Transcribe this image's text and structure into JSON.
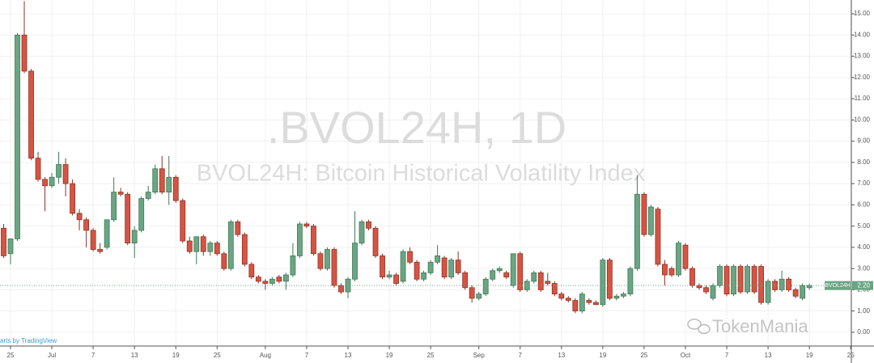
{
  "chart_data": {
    "type": "candlestick",
    "title": ".BVOL24H, 1D",
    "subtitle": "BVOL24H: Bitcoin Historical Volatility Index",
    "categories": [
      null,
      "25",
      null,
      null,
      null,
      null,
      null,
      "Jul",
      null,
      null,
      null,
      null,
      null,
      "7",
      null,
      null,
      null,
      null,
      null,
      "13",
      null,
      null,
      null,
      null,
      null,
      "19",
      null,
      null,
      null,
      null,
      null,
      "25",
      null,
      null,
      null,
      null,
      null,
      null,
      "Aug",
      null,
      null,
      null,
      null,
      null,
      "7",
      null,
      null,
      null,
      null,
      null,
      "13",
      null,
      null,
      null,
      null,
      null,
      "19",
      null,
      null,
      null,
      null,
      null,
      "25",
      null,
      null,
      null,
      null,
      null,
      null,
      "Sep",
      null,
      null,
      null,
      null,
      null,
      "7",
      null,
      null,
      null,
      null,
      null,
      "13",
      null,
      null,
      null,
      null,
      null,
      "19",
      null,
      null,
      null,
      null,
      null,
      "25",
      null,
      null,
      null,
      null,
      null,
      "Oct",
      null,
      null,
      null,
      null,
      null,
      "7",
      null,
      null,
      null,
      null,
      null,
      "13",
      null,
      null,
      null,
      null,
      null,
      "19",
      null,
      null,
      null,
      null,
      null,
      "25"
    ],
    "ohlc_order": [
      "open",
      "high",
      "low",
      "close"
    ],
    "ohlc": [
      [
        4.9,
        5.1,
        3.5,
        3.6
      ],
      [
        3.7,
        4.4,
        3.2,
        4.4
      ],
      [
        4.4,
        14.1,
        4.3,
        14.0
      ],
      [
        14.0,
        15.6,
        12.2,
        12.3
      ],
      [
        12.3,
        12.4,
        8.1,
        8.2
      ],
      [
        8.2,
        8.5,
        7.1,
        7.2
      ],
      [
        7.2,
        7.3,
        5.7,
        6.9
      ],
      [
        6.9,
        7.5,
        6.8,
        7.3
      ],
      [
        7.3,
        8.5,
        7.0,
        7.9
      ],
      [
        7.9,
        8.2,
        6.4,
        7.0
      ],
      [
        7.0,
        7.2,
        5.5,
        5.6
      ],
      [
        5.6,
        5.8,
        4.8,
        5.3
      ],
      [
        5.3,
        5.4,
        4.0,
        4.8
      ],
      [
        4.8,
        4.9,
        3.8,
        3.9
      ],
      [
        3.9,
        4.2,
        3.7,
        3.8
      ],
      [
        4.0,
        5.3,
        3.9,
        5.3
      ],
      [
        5.3,
        7.3,
        5.2,
        6.6
      ],
      [
        6.6,
        6.8,
        6.4,
        6.5
      ],
      [
        6.5,
        6.6,
        4.1,
        4.2
      ],
      [
        4.2,
        5.0,
        3.5,
        4.8
      ],
      [
        4.8,
        6.4,
        4.7,
        6.3
      ],
      [
        6.3,
        6.9,
        6.2,
        6.6
      ],
      [
        6.6,
        7.9,
        6.5,
        7.7
      ],
      [
        7.7,
        8.3,
        6.5,
        6.6
      ],
      [
        6.6,
        8.3,
        6.0,
        7.3
      ],
      [
        7.3,
        7.4,
        6.1,
        6.2
      ],
      [
        6.2,
        6.3,
        4.2,
        4.3
      ],
      [
        4.3,
        4.5,
        3.7,
        3.8
      ],
      [
        3.8,
        4.5,
        3.2,
        4.5
      ],
      [
        4.5,
        4.6,
        3.6,
        3.8
      ],
      [
        3.8,
        4.3,
        3.6,
        4.2
      ],
      [
        4.2,
        4.3,
        3.6,
        3.7
      ],
      [
        3.7,
        3.8,
        2.9,
        3.0
      ],
      [
        3.0,
        5.3,
        2.9,
        5.2
      ],
      [
        5.2,
        5.3,
        4.5,
        4.6
      ],
      [
        4.6,
        4.7,
        3.1,
        3.2
      ],
      [
        3.2,
        3.3,
        2.5,
        2.6
      ],
      [
        2.6,
        2.7,
        2.3,
        2.4
      ],
      [
        2.4,
        2.5,
        2.0,
        2.3
      ],
      [
        2.3,
        2.6,
        2.2,
        2.5
      ],
      [
        2.6,
        2.7,
        2.3,
        2.4
      ],
      [
        2.4,
        2.8,
        2.0,
        2.7
      ],
      [
        2.7,
        4.2,
        2.6,
        3.6
      ],
      [
        3.6,
        5.2,
        3.5,
        5.1
      ],
      [
        5.1,
        5.2,
        4.9,
        5.0
      ],
      [
        5.0,
        5.1,
        3.6,
        3.7
      ],
      [
        3.7,
        3.8,
        2.9,
        3.0
      ],
      [
        3.0,
        4.0,
        2.9,
        3.9
      ],
      [
        3.9,
        4.0,
        2.1,
        2.2
      ],
      [
        2.2,
        2.3,
        1.8,
        1.9
      ],
      [
        1.9,
        2.6,
        1.6,
        2.5
      ],
      [
        2.5,
        5.7,
        2.4,
        4.2
      ],
      [
        4.2,
        5.3,
        4.1,
        5.2
      ],
      [
        5.2,
        5.3,
        4.8,
        4.9
      ],
      [
        4.9,
        5.0,
        3.5,
        3.6
      ],
      [
        3.6,
        3.7,
        2.5,
        2.6
      ],
      [
        2.6,
        2.9,
        2.5,
        2.7
      ],
      [
        2.7,
        2.8,
        2.2,
        2.3
      ],
      [
        2.4,
        3.9,
        2.3,
        3.8
      ],
      [
        3.8,
        4.0,
        3.2,
        3.3
      ],
      [
        3.3,
        3.4,
        2.4,
        2.5
      ],
      [
        2.5,
        2.9,
        2.4,
        2.8
      ],
      [
        2.8,
        3.4,
        2.7,
        3.3
      ],
      [
        3.3,
        4.1,
        3.2,
        3.6
      ],
      [
        3.5,
        3.6,
        2.5,
        2.6
      ],
      [
        2.6,
        3.5,
        2.5,
        3.4
      ],
      [
        3.4,
        3.8,
        2.7,
        2.8
      ],
      [
        2.8,
        2.9,
        2.0,
        2.1
      ],
      [
        2.1,
        2.2,
        1.4,
        1.6
      ],
      [
        1.6,
        1.9,
        1.5,
        1.8
      ],
      [
        1.8,
        2.6,
        1.7,
        2.5
      ],
      [
        2.5,
        3.0,
        2.4,
        2.9
      ],
      [
        2.9,
        3.1,
        2.8,
        3.0
      ],
      [
        2.8,
        2.9,
        2.5,
        2.6
      ],
      [
        2.2,
        3.7,
        2.1,
        3.7
      ],
      [
        3.7,
        3.8,
        1.9,
        2.0
      ],
      [
        2.0,
        2.5,
        1.9,
        2.4
      ],
      [
        2.4,
        2.9,
        2.3,
        2.8
      ],
      [
        2.8,
        2.9,
        1.9,
        2.0
      ],
      [
        2.4,
        2.8,
        2.2,
        2.3
      ],
      [
        2.3,
        2.4,
        1.7,
        1.8
      ],
      [
        1.8,
        1.9,
        1.5,
        1.6
      ],
      [
        1.6,
        1.7,
        1.4,
        1.5
      ],
      [
        1.5,
        1.6,
        0.9,
        1.0
      ],
      [
        1.0,
        1.9,
        0.9,
        1.8
      ],
      [
        1.5,
        1.6,
        1.3,
        1.4
      ],
      [
        1.4,
        1.5,
        1.3,
        1.3
      ],
      [
        1.3,
        3.5,
        1.2,
        3.4
      ],
      [
        3.4,
        3.5,
        1.5,
        1.6
      ],
      [
        1.6,
        1.8,
        1.5,
        1.7
      ],
      [
        1.7,
        1.9,
        1.6,
        1.8
      ],
      [
        1.8,
        3.1,
        1.7,
        3.0
      ],
      [
        3.0,
        7.4,
        2.9,
        6.5
      ],
      [
        6.5,
        6.6,
        4.5,
        4.6
      ],
      [
        4.6,
        6.0,
        4.5,
        5.9
      ],
      [
        5.8,
        5.9,
        3.1,
        3.2
      ],
      [
        3.2,
        3.4,
        2.2,
        2.7
      ],
      [
        3.0,
        3.1,
        2.6,
        2.7
      ],
      [
        2.7,
        4.3,
        2.6,
        4.2
      ],
      [
        4.1,
        4.2,
        2.9,
        3.0
      ],
      [
        3.0,
        3.1,
        2.1,
        2.2
      ],
      [
        2.2,
        2.3,
        2.0,
        2.1
      ],
      [
        2.1,
        2.2,
        1.8,
        1.9
      ],
      [
        1.6,
        2.3,
        1.5,
        2.2
      ],
      [
        2.2,
        3.2,
        2.1,
        3.1
      ],
      [
        3.1,
        3.2,
        1.7,
        1.8
      ],
      [
        1.8,
        3.2,
        1.7,
        3.1
      ],
      [
        3.1,
        3.2,
        1.8,
        1.9
      ],
      [
        1.9,
        3.2,
        1.8,
        3.1
      ],
      [
        3.1,
        3.2,
        1.8,
        1.9
      ],
      [
        3.1,
        3.2,
        1.3,
        1.4
      ],
      [
        1.4,
        2.5,
        1.3,
        2.4
      ],
      [
        2.4,
        2.5,
        1.9,
        2.0
      ],
      [
        2.0,
        2.9,
        1.9,
        2.5
      ],
      [
        2.5,
        2.6,
        1.9,
        2.0
      ],
      [
        2.0,
        2.1,
        1.6,
        1.7
      ],
      [
        1.6,
        2.3,
        1.5,
        2.2
      ],
      [
        2.1,
        2.3,
        2.0,
        2.2
      ],
      null,
      null,
      null,
      null,
      null,
      null
    ],
    "up_color": "#6ba583",
    "down_color": "#d75442",
    "ylim": [
      -0.65,
      15.65
    ],
    "yticks": [
      {
        "value": 0,
        "label": "0.00"
      },
      {
        "value": 1,
        "label": "1.00"
      },
      {
        "value": 2,
        "label": "2.00"
      },
      {
        "value": 3,
        "label": "3.00"
      },
      {
        "value": 4,
        "label": "4.00"
      },
      {
        "value": 5,
        "label": "5.00"
      },
      {
        "value": 6,
        "label": "6.00"
      },
      {
        "value": 7,
        "label": "7.00"
      },
      {
        "value": 8,
        "label": "8.00"
      },
      {
        "value": 9,
        "label": "9.00"
      },
      {
        "value": 10,
        "label": "10.00"
      },
      {
        "value": 11,
        "label": "11.00"
      },
      {
        "value": 12,
        "label": "12.00"
      },
      {
        "value": 13,
        "label": "13.00"
      },
      {
        "value": 14,
        "label": "14.00"
      },
      {
        "value": 15,
        "label": "15.00"
      }
    ],
    "grid": true,
    "last_price": {
      "value": 2.2,
      "label": "2.20"
    },
    "symbol_label": "BVOL24H"
  },
  "credit": "arts by TradingView",
  "watermark": "TokenMania"
}
